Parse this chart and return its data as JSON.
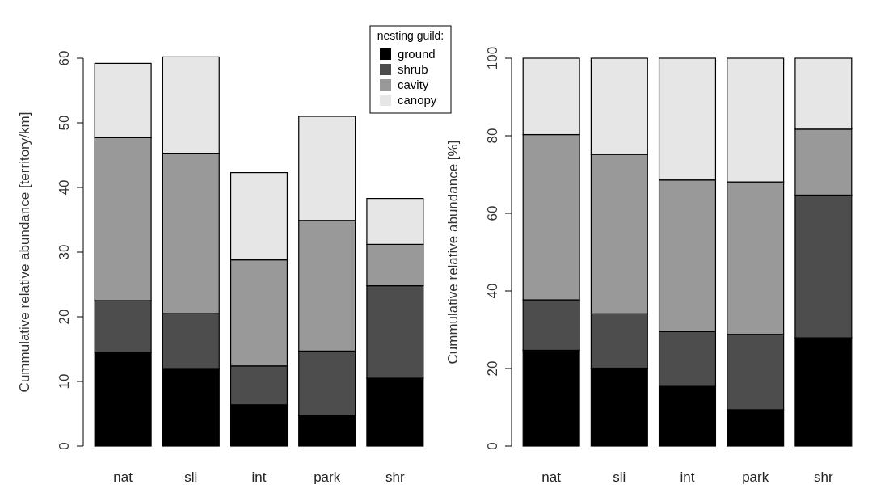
{
  "chart_data": [
    {
      "type": "bar",
      "stacked": true,
      "ylabel": "Cummulative relative abundance [territory/km]",
      "categories": [
        "nat",
        "sli",
        "int",
        "park",
        "shr"
      ],
      "ylim": [
        0,
        60
      ],
      "yticks": [
        0,
        10,
        20,
        30,
        40,
        50,
        60
      ],
      "legend": "top right",
      "legend_title": "nesting guild:",
      "series": [
        {
          "name": "ground",
          "color": "#000000",
          "values": [
            14.5,
            12.0,
            6.4,
            4.7,
            10.5
          ]
        },
        {
          "name": "shrub",
          "color": "#4d4d4d",
          "values": [
            8.0,
            8.5,
            6.0,
            10.0,
            14.3
          ]
        },
        {
          "name": "cavity",
          "color": "#999999",
          "values": [
            25.2,
            24.8,
            16.4,
            20.2,
            6.4
          ]
        },
        {
          "name": "canopy",
          "color": "#e6e6e6",
          "values": [
            11.5,
            14.9,
            13.5,
            16.1,
            7.1
          ]
        }
      ]
    },
    {
      "type": "bar",
      "stacked": true,
      "ylabel": "Cummulative relative abundance [%]",
      "categories": [
        "nat",
        "sli",
        "int",
        "park",
        "shr"
      ],
      "ylim": [
        0,
        100
      ],
      "yticks": [
        0,
        20,
        40,
        60,
        80,
        100
      ],
      "series": [
        {
          "color": "#000000",
          "values": [
            24.7,
            20.1,
            15.4,
            9.4,
            27.9
          ]
        },
        {
          "color": "#4d4d4d",
          "values": [
            13.0,
            14.0,
            14.1,
            19.4,
            36.8
          ]
        },
        {
          "color": "#999999",
          "values": [
            42.6,
            41.1,
            39.1,
            39.3,
            17.0
          ]
        },
        {
          "color": "#e6e6e6",
          "values": [
            19.7,
            24.8,
            31.4,
            31.9,
            18.3
          ]
        }
      ]
    }
  ]
}
